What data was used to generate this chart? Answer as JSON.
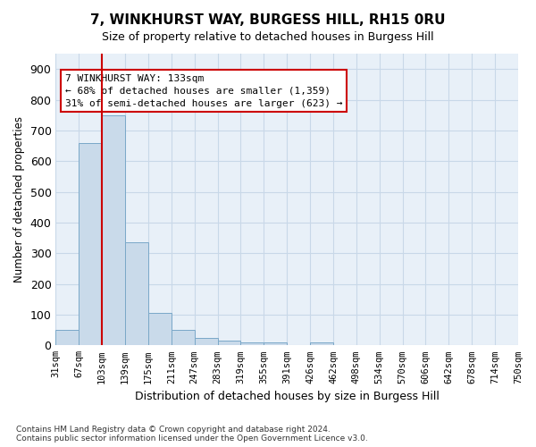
{
  "title": "7, WINKHURST WAY, BURGESS HILL, RH15 0RU",
  "subtitle": "Size of property relative to detached houses in Burgess Hill",
  "xlabel": "Distribution of detached houses by size in Burgess Hill",
  "ylabel": "Number of detached properties",
  "footnote": "Contains HM Land Registry data © Crown copyright and database right 2024.\nContains public sector information licensed under the Open Government Licence v3.0.",
  "bin_labels": [
    "31sqm",
    "67sqm",
    "103sqm",
    "139sqm",
    "175sqm",
    "211sqm",
    "247sqm",
    "283sqm",
    "319sqm",
    "355sqm",
    "391sqm",
    "426sqm",
    "462sqm",
    "498sqm",
    "534sqm",
    "570sqm",
    "606sqm",
    "642sqm",
    "678sqm",
    "714sqm",
    "750sqm"
  ],
  "bar_heights": [
    50,
    660,
    750,
    335,
    105,
    50,
    25,
    15,
    10,
    10,
    0,
    10,
    0,
    0,
    0,
    0,
    0,
    0,
    0,
    0
  ],
  "bar_color": "#c9daea",
  "bar_edge_color": "#7aa8c8",
  "grid_color": "#c8d8e8",
  "bg_color": "#e8f0f8",
  "vline_x": 2,
  "vline_color": "#cc0000",
  "annotation_text": "7 WINKHURST WAY: 133sqm\n← 68% of detached houses are smaller (1,359)\n31% of semi-detached houses are larger (623) →",
  "annotation_box_color": "#ffffff",
  "annotation_box_edge": "#cc0000",
  "ylim": [
    0,
    950
  ],
  "yticks": [
    0,
    100,
    200,
    300,
    400,
    500,
    600,
    700,
    800,
    900
  ]
}
